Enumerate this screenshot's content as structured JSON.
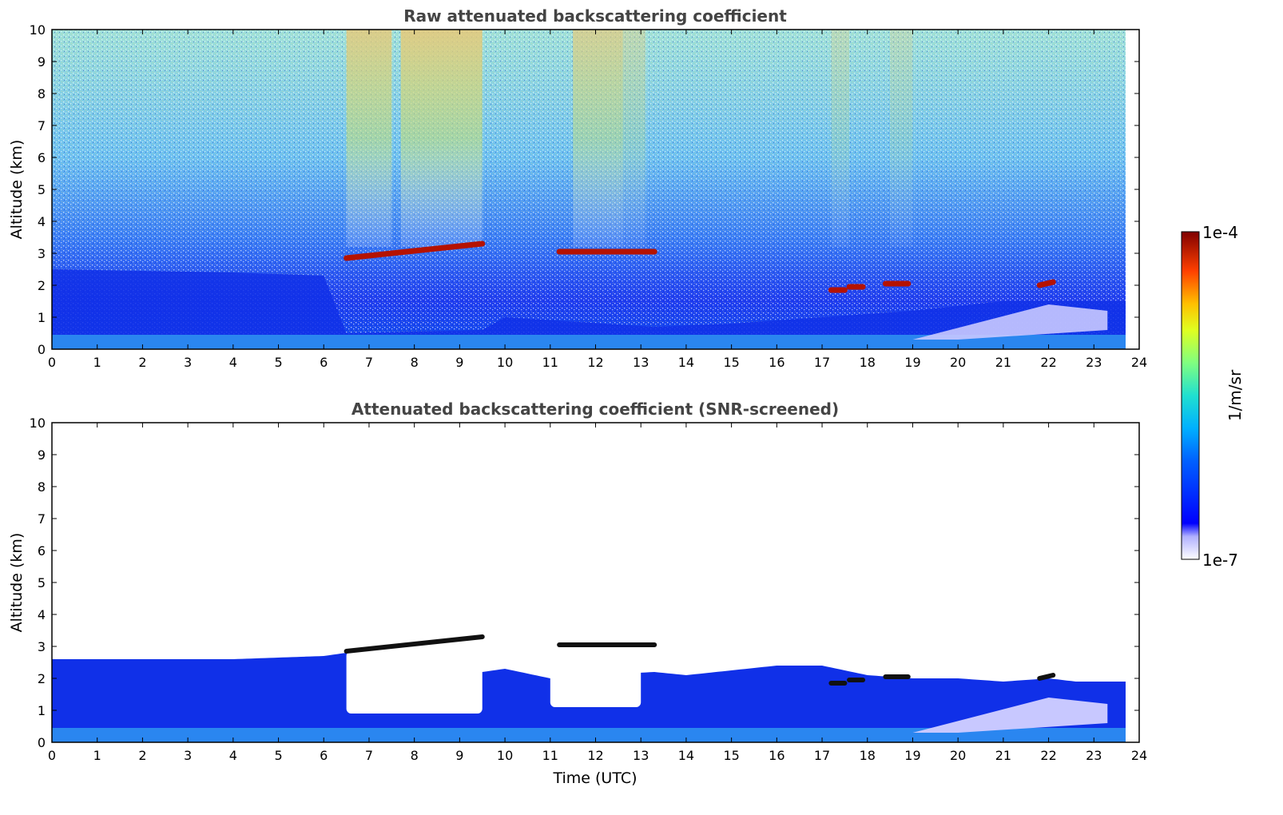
{
  "chart_data": [
    {
      "type": "heatmap",
      "title": "Raw attenuated backscattering coefficient",
      "xlabel": "",
      "ylabel": "Altitude (km)",
      "xlim": [
        0,
        24
      ],
      "ylim": [
        0,
        10
      ],
      "x_ticks": [
        "0",
        "1",
        "2",
        "3",
        "4",
        "5",
        "6",
        "7",
        "8",
        "9",
        "10",
        "11",
        "12",
        "13",
        "14",
        "15",
        "16",
        "17",
        "18",
        "19",
        "20",
        "21",
        "22",
        "23",
        "24"
      ],
      "y_ticks": [
        "0",
        "1",
        "2",
        "3",
        "4",
        "5",
        "6",
        "7",
        "8",
        "9",
        "10"
      ],
      "data_end_time": 23.7,
      "boundary_layer_top_km": [
        [
          0,
          2.5
        ],
        [
          4,
          2.4
        ],
        [
          6,
          2.3
        ],
        [
          6.5,
          0.5
        ],
        [
          9.5,
          0.6
        ],
        [
          10,
          1.0
        ],
        [
          13.3,
          0.7
        ],
        [
          15,
          0.8
        ],
        [
          17,
          1.0
        ],
        [
          19,
          1.2
        ],
        [
          21,
          1.5
        ],
        [
          23.7,
          1.5
        ]
      ],
      "cloud_layers": [
        {
          "t_start": 6.5,
          "t_end": 9.5,
          "alt_start_km": 2.85,
          "alt_end_km": 3.3
        },
        {
          "t_start": 11.2,
          "t_end": 13.3,
          "alt_start_km": 3.05,
          "alt_end_km": 3.05
        },
        {
          "t_start": 17.2,
          "t_end": 17.5,
          "alt_start_km": 1.85,
          "alt_end_km": 1.85
        },
        {
          "t_start": 17.6,
          "t_end": 17.9,
          "alt_start_km": 1.95,
          "alt_end_km": 1.95
        },
        {
          "t_start": 18.4,
          "t_end": 18.9,
          "alt_start_km": 2.05,
          "alt_end_km": 2.05
        },
        {
          "t_start": 21.8,
          "t_end": 22.1,
          "alt_start_km": 2.0,
          "alt_end_km": 2.1
        }
      ]
    },
    {
      "type": "heatmap",
      "title": "Attenuated backscattering coefficient (SNR-screened)",
      "xlabel": "Time (UTC)",
      "ylabel": "Altitude (km)",
      "xlim": [
        0,
        24
      ],
      "ylim": [
        0,
        10
      ],
      "x_ticks": [
        "0",
        "1",
        "2",
        "3",
        "4",
        "5",
        "6",
        "7",
        "8",
        "9",
        "10",
        "11",
        "12",
        "13",
        "14",
        "15",
        "16",
        "17",
        "18",
        "19",
        "20",
        "21",
        "22",
        "23",
        "24"
      ],
      "y_ticks": [
        "0",
        "1",
        "2",
        "3",
        "4",
        "5",
        "6",
        "7",
        "8",
        "9",
        "10"
      ],
      "data_end_time": 23.7,
      "signal_top_km": [
        [
          0,
          2.6
        ],
        [
          2,
          2.6
        ],
        [
          4,
          2.6
        ],
        [
          6,
          2.7
        ],
        [
          6.5,
          2.8
        ],
        [
          9.5,
          2.2
        ],
        [
          10,
          2.3
        ],
        [
          11,
          2.0
        ],
        [
          12,
          2.1
        ],
        [
          13.3,
          2.2
        ],
        [
          14,
          2.1
        ],
        [
          16,
          2.4
        ],
        [
          17,
          2.4
        ],
        [
          18,
          2.1
        ],
        [
          19,
          2.0
        ],
        [
          20,
          2.0
        ],
        [
          21,
          1.9
        ],
        [
          22,
          2.0
        ],
        [
          22.6,
          1.9
        ],
        [
          23.7,
          1.9
        ]
      ],
      "screened_gaps": [
        {
          "t_start": 6.5,
          "t_end": 9.5,
          "alt_bottom_km": 0.9,
          "alt_top_km": 2.85
        },
        {
          "t_start": 11.0,
          "t_end": 13.0,
          "alt_bottom_km": 1.1,
          "alt_top_km": 3.0
        }
      ]
    }
  ],
  "colorbar": {
    "label": "1/m/sr",
    "max_label": "1e-4",
    "min_label": "1e-7",
    "colormap": "jet",
    "scale": "log"
  },
  "colors": {
    "title": "#444444",
    "cloud": "#b51200",
    "cloud_screened": "#111111",
    "background_noise": "#6fd3f5"
  }
}
